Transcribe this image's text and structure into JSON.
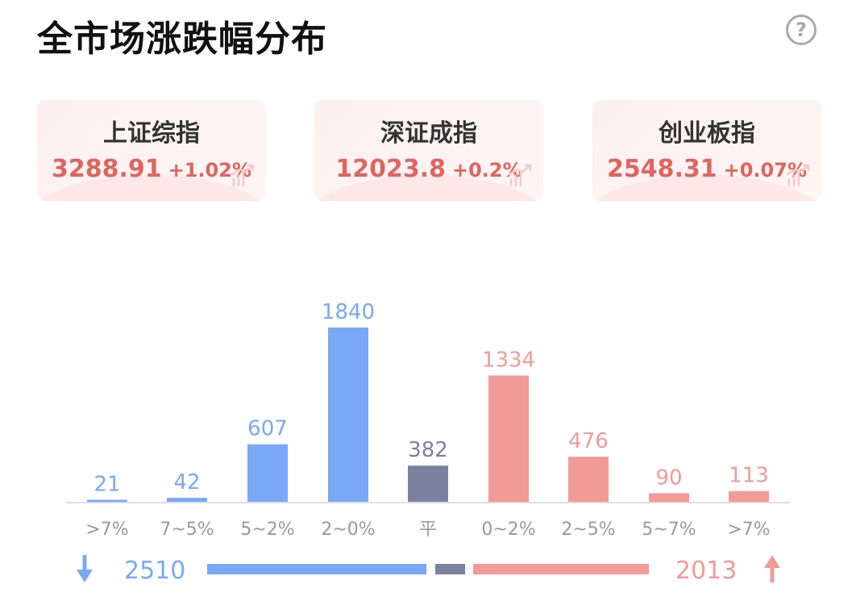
{
  "title": "全市场涨跌幅分布",
  "help_icon": "question-circle-icon",
  "indices": [
    {
      "name": "上证综指",
      "value": "3288.91",
      "change": "+1.02%"
    },
    {
      "name": "深证成指",
      "value": "12023.8",
      "change": "+0.2%"
    },
    {
      "name": "创业板指",
      "value": "2548.31",
      "change": "+0.07%"
    }
  ],
  "colors": {
    "down": "#79a8f7",
    "flat": "#7a82a0",
    "up": "#f09b98",
    "index_red": "#e0645f"
  },
  "chart_data": {
    "type": "bar",
    "categories": [
      ">7%",
      "7~5%",
      "5~2%",
      "2~0%",
      "平",
      "0~2%",
      "2~5%",
      "5~7%",
      ">7%"
    ],
    "values": [
      21,
      42,
      607,
      1840,
      382,
      1334,
      476,
      90,
      113
    ],
    "groups": [
      "down",
      "down",
      "down",
      "down",
      "flat",
      "up",
      "up",
      "up",
      "up"
    ],
    "value_labels": [
      "21",
      "42",
      "607",
      "1840",
      "382",
      "1334",
      "476",
      "90",
      "113"
    ],
    "ylim": [
      0,
      1840
    ]
  },
  "summary": {
    "down_total": "2510",
    "up_total": "2013",
    "down_icon": "arrow-down-icon",
    "up_icon": "arrow-up-icon"
  }
}
